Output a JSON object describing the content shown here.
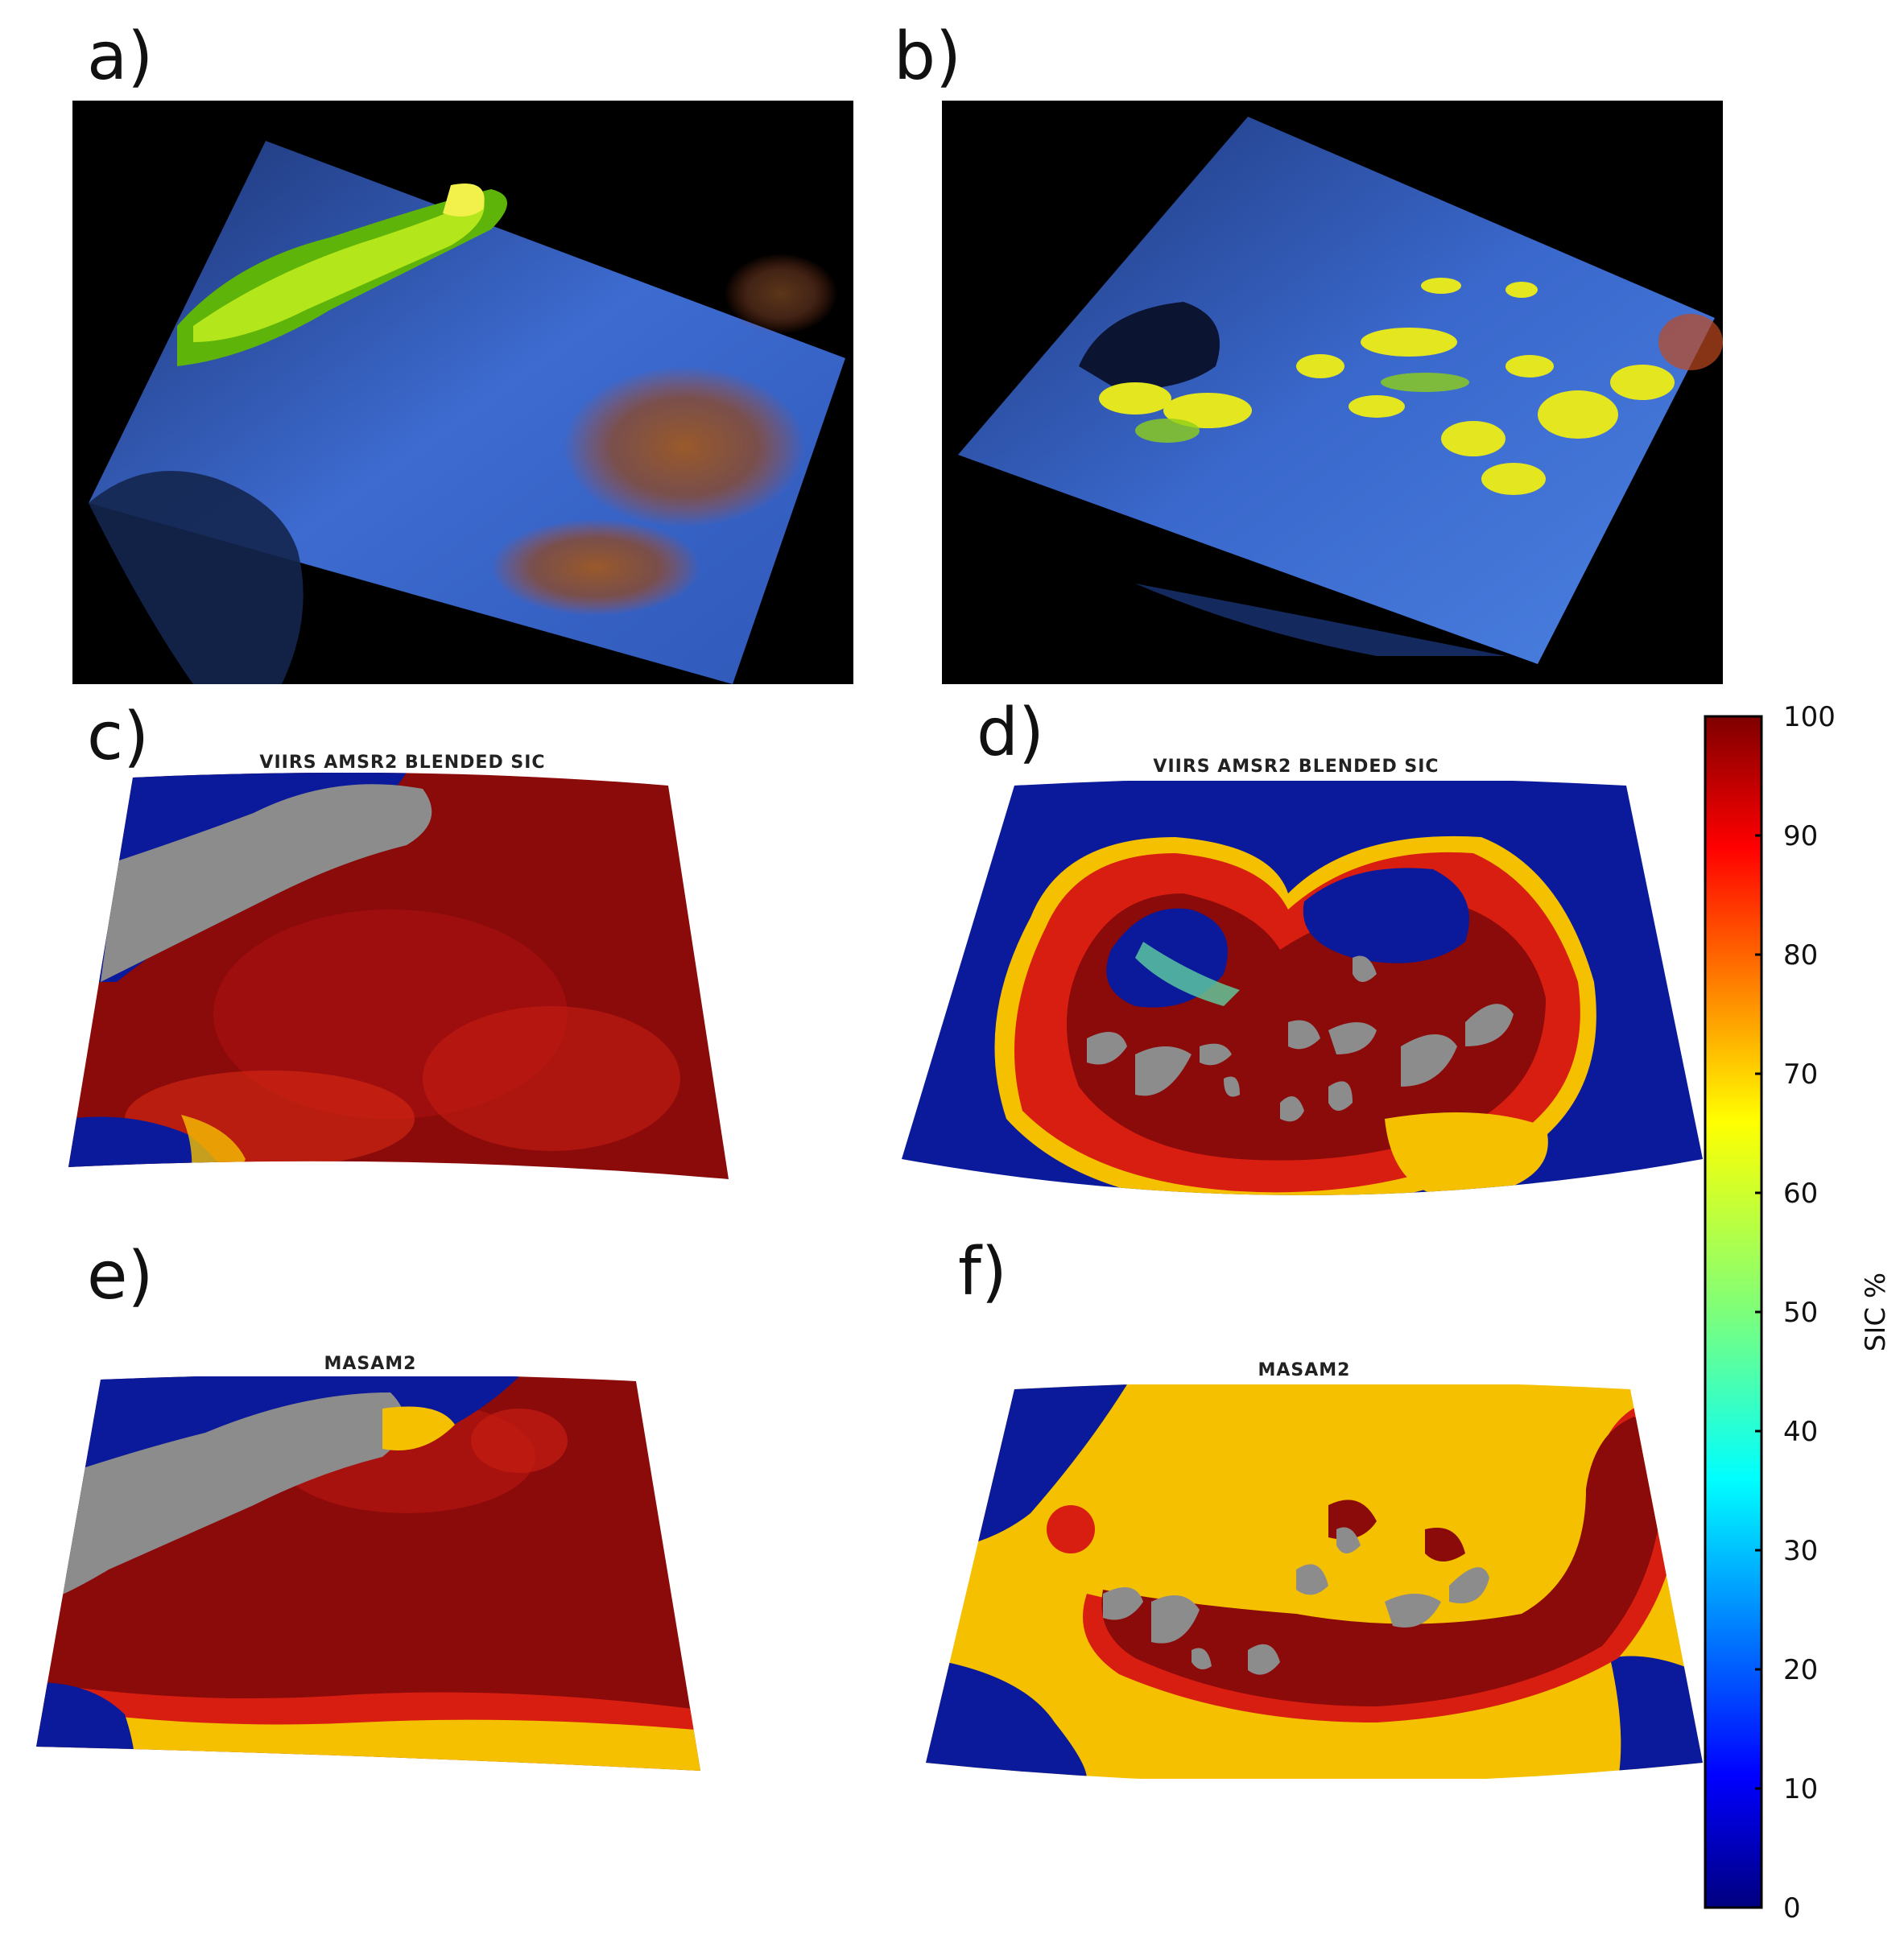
{
  "panels": [
    {
      "letter": "a)",
      "title": ""
    },
    {
      "letter": "b)",
      "title": ""
    },
    {
      "letter": "c)",
      "title": "VIIRS AMSR2 BLENDED SIC"
    },
    {
      "letter": "d)",
      "title": "VIIRS AMSR2 BLENDED SIC"
    },
    {
      "letter": "e)",
      "title": "MASAM2"
    },
    {
      "letter": "f)",
      "title": "MASAM2"
    }
  ],
  "colorbar": {
    "label": "SIC %",
    "ticks": [
      "100",
      "90",
      "80",
      "70",
      "60",
      "50",
      "40",
      "30",
      "20",
      "10",
      "0"
    ]
  },
  "colors": {
    "ocean": "#0a1a9a",
    "land": "#8c8c8c",
    "ice_high": "#8b0a0a",
    "ice_mid": "#d81e10",
    "ice_yellow": "#f5c000",
    "satellite_bg": "#000000",
    "satellite_blue": "#3f6fd6"
  }
}
